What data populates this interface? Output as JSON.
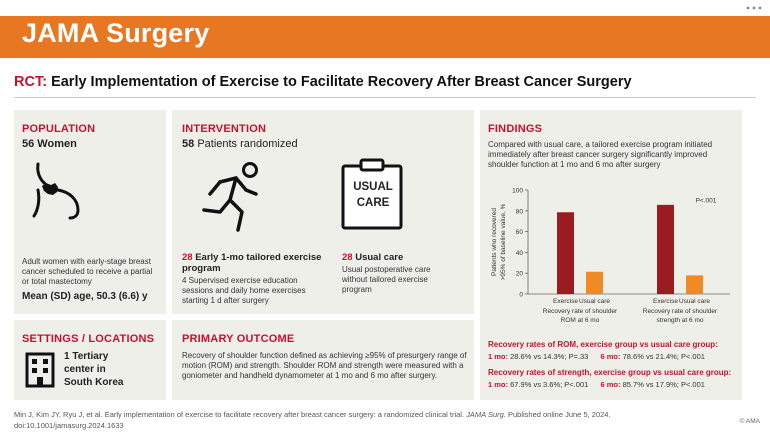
{
  "journal": "JAMA Surgery",
  "headline": {
    "lead": "RCT:",
    "title": "Early Implementation of Exercise to Facilitate Recovery After Breast Cancer Surgery"
  },
  "population": {
    "heading": "POPULATION",
    "count": "56 Women",
    "description": "Adult women with early-stage breast cancer scheduled to receive a partial or total mastectomy",
    "age": "Mean (SD) age, 50.3 (6.6) y",
    "icon": "breast-icon"
  },
  "intervention": {
    "heading": "INTERVENTION",
    "randomized_count": "58",
    "randomized_label": "Patients randomized",
    "arm1": {
      "count": "28",
      "title": "Early 1-mo tailored exercise program",
      "description": "4 Supervised exercise education sessions and daily home exercises starting 1 d after surgery",
      "icon": "running-person-icon"
    },
    "arm2": {
      "count": "28",
      "title": "Usual care",
      "description": "Usual postoperative care without tailored exercise program",
      "icon_text_1": "USUAL",
      "icon_text_2": "CARE",
      "icon": "clipboard-icon"
    }
  },
  "settings": {
    "heading": "SETTINGS / LOCATIONS",
    "line1": "1 Tertiary",
    "line2": "center in",
    "line3": "South Korea",
    "icon": "building-icon"
  },
  "primary_outcome": {
    "heading": "PRIMARY OUTCOME",
    "text": "Recovery of shoulder function defined as achieving ≥95% of presurgery range of motion (ROM) and strength. Shoulder ROM and strength were measured with a goniometer and handheld dynamometer at 1 mo and 6 mo after surgery."
  },
  "findings": {
    "heading": "FINDINGS",
    "summary": "Compared with usual care, a tailored exercise program initiated immediately after breast cancer surgery significantly improved shoulder function at 1 mo and 6 mo after surgery",
    "rom_heading": "Recovery rates of ROM, exercise group vs usual care group:",
    "rom_1mo_label": "1 mo:",
    "rom_1mo_values": "28.6% vs 14.3%; P=.33",
    "rom_6mo_label": "6 mo:",
    "rom_6mo_values": "78.6% vs 21.4%; P<.001",
    "str_heading": "Recovery rates of strength, exercise group vs usual care group:",
    "str_1mo_label": "1 mo:",
    "str_1mo_values": "67.9% vs 3.6%; P<.001",
    "str_6mo_label": "6 mo:",
    "str_6mo_values": "85.7% vs 17.9%; P<.001"
  },
  "chart_data": {
    "type": "bar",
    "ylabel": "Patients who recovered >95% of baseline value, %",
    "ylim": [
      0,
      100
    ],
    "yticks": [
      0,
      20,
      40,
      60,
      80,
      100
    ],
    "grid": false,
    "colors": {
      "exercise": "#9b1c20",
      "usual": "#f08a24"
    },
    "annotation": "P<.001",
    "groups": [
      {
        "label_1": "Recovery rate of shoulder",
        "label_2": "ROM at 6 mo",
        "bars": [
          {
            "name": "Exercise",
            "value": 78.6
          },
          {
            "name": "Usual care",
            "value": 21.4
          }
        ]
      },
      {
        "label_1": "Recovery rate of shoulder",
        "label_2": "strength at 6 mo",
        "bars": [
          {
            "name": "Exercise",
            "value": 85.7
          },
          {
            "name": "Usual care",
            "value": 17.9
          }
        ]
      }
    ]
  },
  "footer": {
    "citation_line1": "Min J, Kim JY, Ryu J, et al. Early implementation of exercise to facilitate recovery after breast cancer surgery: a randomized clinical trial.",
    "journal_abbrev": "JAMA Surg.",
    "published": "Published online June 5, 2024.",
    "doi": "doi:10.1001/jamasurg.2024.1633",
    "copyright": "© AMA"
  },
  "colors": {
    "accent_orange": "#e87722",
    "accent_red": "#c8102e",
    "panel_bg": "#efefea"
  }
}
